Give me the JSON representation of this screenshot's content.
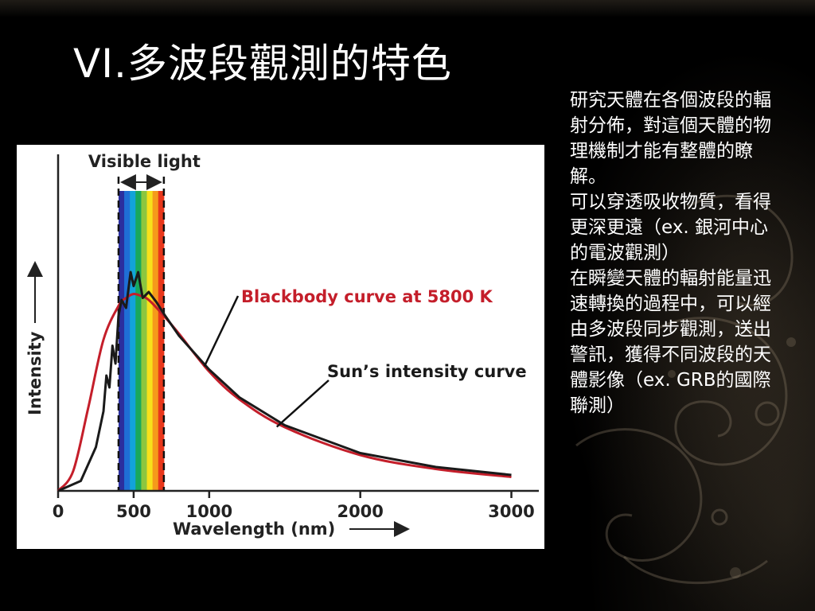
{
  "slide": {
    "title": "VI.多波段觀測的特色",
    "paragraphs": [
      "研究天體在各個波段的輻射分佈，對這個天體的物理機制才能有整體的瞭解。",
      "可以穿透吸收物質，看得更深更遠（ex. 銀河中心的電波觀測）",
      "在瞬變天體的輻射能量迅速轉換的過程中，可以經由多波段同步觀測，送出警訊，獲得不同波段的天體影像（ex. GRB的國際聯測）"
    ]
  },
  "chart_data": {
    "type": "line",
    "xlabel": "Wavelength (nm)",
    "ylabel": "Intensity",
    "xlim": [
      0,
      3150
    ],
    "x_ticks": [
      0,
      500,
      1000,
      2000,
      3000
    ],
    "visible_band": {
      "label": "Visible light",
      "range": [
        400,
        700
      ]
    },
    "colors": {
      "blackbody": "#c41e2a",
      "sun": "#1a1a1a",
      "axis": "#222222"
    },
    "annotations": [
      {
        "text": "Blackbody curve at 5800 K",
        "color": "#c41e2a",
        "points_to": "blackbody"
      },
      {
        "text": "Sun’s intensity curve",
        "color": "#1a1a1a",
        "points_to": "sun"
      }
    ],
    "series": [
      {
        "name": "Blackbody curve at 5800 K",
        "x": [
          0,
          100,
          200,
          300,
          400,
          450,
          500,
          550,
          600,
          700,
          800,
          1000,
          1200,
          1500,
          2000,
          2500,
          3000
        ],
        "y": [
          0,
          10,
          42,
          76,
          93,
          97,
          99,
          98,
          96,
          88,
          79,
          60,
          46,
          32,
          18,
          11,
          7
        ]
      },
      {
        "name": "Sun’s intensity curve",
        "x": [
          0,
          150,
          250,
          300,
          320,
          340,
          360,
          380,
          400,
          420,
          450,
          480,
          500,
          530,
          560,
          600,
          650,
          700,
          800,
          1000,
          1200,
          1500,
          2000,
          2500,
          3000
        ],
        "y": [
          0,
          5,
          22,
          40,
          58,
          52,
          73,
          64,
          88,
          96,
          92,
          110,
          103,
          110,
          97,
          100,
          95,
          89,
          78,
          61,
          47,
          33,
          19,
          12,
          8
        ]
      }
    ]
  }
}
